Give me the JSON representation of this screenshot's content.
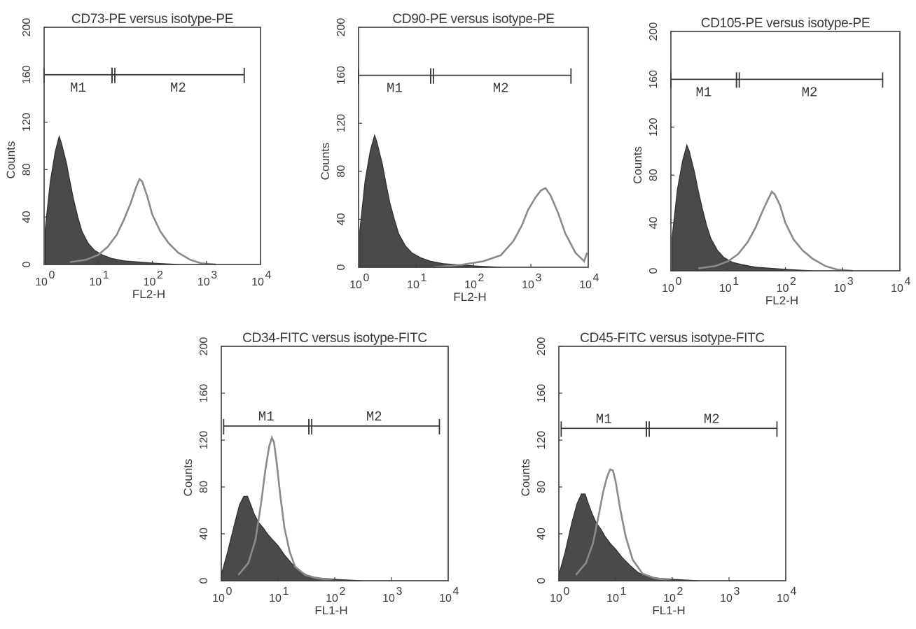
{
  "chart_data": [
    {
      "type": "area",
      "title": "CD73-PE versus isotype-PE",
      "xlabel": "FL2-H",
      "ylabel": "Counts",
      "xscale": "log",
      "xlim": [
        1,
        10000
      ],
      "ylim": [
        0,
        200
      ],
      "x_ticks": [
        "10",
        "10",
        "10",
        "10",
        "10"
      ],
      "x_tick_exponents": [
        "0",
        "1",
        "2",
        "3",
        "4"
      ],
      "y_ticks": [
        "0",
        "40",
        "80",
        "120",
        "160",
        "200"
      ],
      "grid": false,
      "gates": [
        {
          "label": "M1",
          "start": 1,
          "end": 18,
          "level": 160
        },
        {
          "label": "M2",
          "start": 18,
          "end": 5000,
          "level": 160
        }
      ],
      "series": [
        {
          "style": "filled",
          "color": "#4a4a4a",
          "x": [
            1.05,
            1.3,
            1.6,
            1.9,
            2.1,
            2.3,
            2.6,
            3.0,
            3.5,
            4.2,
            5.0,
            6.5,
            8.5,
            12,
            18,
            30,
            60,
            120,
            300
          ],
          "y": [
            30,
            70,
            95,
            108,
            102,
            95,
            85,
            70,
            55,
            40,
            28,
            18,
            12,
            8,
            5,
            3,
            2,
            1,
            0
          ]
        },
        {
          "style": "outline",
          "color": "#8a8a8a",
          "x": [
            3,
            6,
            10,
            15,
            22,
            30,
            40,
            50,
            58,
            65,
            80,
            100,
            140,
            200,
            300,
            500,
            800,
            1500
          ],
          "y": [
            2,
            4,
            8,
            15,
            25,
            38,
            52,
            65,
            72,
            70,
            58,
            42,
            28,
            18,
            10,
            4,
            1,
            0
          ]
        }
      ]
    },
    {
      "type": "area",
      "title": "CD90-PE versus isotype-PE",
      "xlabel": "FL2-H",
      "ylabel": "Counts",
      "xscale": "log",
      "xlim": [
        1,
        10000
      ],
      "ylim": [
        0,
        200
      ],
      "x_ticks": [
        "10",
        "10",
        "10",
        "10",
        "10"
      ],
      "x_tick_exponents": [
        "0",
        "1",
        "2",
        "3",
        "4"
      ],
      "y_ticks": [
        "0",
        "40",
        "80",
        "120",
        "160",
        "200"
      ],
      "grid": false,
      "gates": [
        {
          "label": "M1",
          "start": 1,
          "end": 18,
          "level": 160
        },
        {
          "label": "M2",
          "start": 18,
          "end": 5000,
          "level": 160
        }
      ],
      "series": [
        {
          "style": "filled",
          "color": "#4a4a4a",
          "x": [
            1.05,
            1.3,
            1.6,
            1.9,
            2.1,
            2.3,
            2.6,
            3.0,
            3.5,
            4.2,
            5.0,
            6.5,
            8.5,
            12,
            18,
            30,
            60,
            120,
            300
          ],
          "y": [
            30,
            72,
            97,
            110,
            104,
            96,
            86,
            70,
            54,
            40,
            28,
            18,
            12,
            8,
            5,
            3,
            2,
            1,
            0
          ]
        },
        {
          "style": "outline",
          "color": "#8a8a8a",
          "x": [
            20,
            60,
            150,
            300,
            500,
            700,
            900,
            1200,
            1500,
            1800,
            2200,
            3000,
            4000,
            6000,
            8500,
            9500
          ],
          "y": [
            0,
            2,
            5,
            10,
            22,
            35,
            48,
            58,
            64,
            66,
            60,
            45,
            28,
            12,
            5,
            12
          ]
        }
      ]
    },
    {
      "type": "area",
      "title": "CD105-PE versus isotype-PE",
      "xlabel": "FL2-H",
      "ylabel": "Counts",
      "xscale": "log",
      "xlim": [
        1,
        10000
      ],
      "ylim": [
        0,
        200
      ],
      "x_ticks": [
        "10",
        "10",
        "10",
        "10",
        "10"
      ],
      "x_tick_exponents": [
        "0",
        "1",
        "2",
        "3",
        "4"
      ],
      "y_ticks": [
        "0",
        "40",
        "80",
        "120",
        "160",
        "200"
      ],
      "grid": false,
      "gates": [
        {
          "label": "M1",
          "start": 1,
          "end": 14,
          "level": 160
        },
        {
          "label": "M2",
          "start": 14,
          "end": 5000,
          "level": 160
        }
      ],
      "series": [
        {
          "style": "filled",
          "color": "#4a4a4a",
          "x": [
            1.05,
            1.3,
            1.6,
            1.9,
            2.1,
            2.3,
            2.6,
            3.0,
            3.5,
            4.2,
            5.0,
            6.5,
            8.5,
            12,
            18,
            30,
            60,
            120,
            300
          ],
          "y": [
            28,
            68,
            92,
            105,
            100,
            92,
            82,
            67,
            53,
            38,
            27,
            17,
            11,
            7,
            5,
            3,
            2,
            1,
            0
          ]
        },
        {
          "style": "outline",
          "color": "#8a8a8a",
          "x": [
            3,
            6,
            10,
            15,
            22,
            30,
            40,
            50,
            58,
            65,
            80,
            100,
            140,
            200,
            300,
            500,
            800,
            1500
          ],
          "y": [
            2,
            4,
            8,
            14,
            24,
            36,
            50,
            60,
            66,
            64,
            55,
            40,
            26,
            17,
            10,
            4,
            1,
            0
          ]
        }
      ]
    },
    {
      "type": "area",
      "title": "CD34-FITC versus isotype-FITC",
      "xlabel": "FL1-H",
      "ylabel": "Counts",
      "xscale": "log",
      "xlim": [
        1,
        10000
      ],
      "ylim": [
        0,
        200
      ],
      "x_ticks": [
        "10",
        "10",
        "10",
        "10",
        "10"
      ],
      "x_tick_exponents": [
        "0",
        "1",
        "2",
        "3",
        "4"
      ],
      "y_ticks": [
        "0",
        "40",
        "80",
        "120",
        "160",
        "200"
      ],
      "grid": false,
      "gates": [
        {
          "label": "M1",
          "start": 1.1,
          "end": 35,
          "level": 132
        },
        {
          "label": "M2",
          "start": 35,
          "end": 7000,
          "level": 132
        }
      ],
      "series": [
        {
          "style": "filled",
          "color": "#4a4a4a",
          "x": [
            1.0,
            1.3,
            1.7,
            2.1,
            2.5,
            2.9,
            3.3,
            3.8,
            4.5,
            5.5,
            6.5,
            8,
            10,
            13,
            18,
            25,
            35,
            60,
            120,
            300
          ],
          "y": [
            5,
            25,
            48,
            65,
            72,
            72,
            65,
            57,
            50,
            45,
            40,
            35,
            30,
            22,
            14,
            8,
            4,
            2,
            1,
            0
          ]
        },
        {
          "style": "outline",
          "color": "#8a8a8a",
          "x": [
            2,
            3,
            4,
            5,
            6,
            7,
            7.8,
            8.5,
            9.5,
            11,
            13,
            16,
            20,
            30,
            50,
            100
          ],
          "y": [
            5,
            15,
            35,
            65,
            95,
            115,
            122,
            118,
            100,
            72,
            45,
            25,
            12,
            5,
            2,
            0
          ]
        }
      ]
    },
    {
      "type": "area",
      "title": "CD45-FITC versus isotype-FITC",
      "xlabel": "FL1-H",
      "ylabel": "Counts",
      "xscale": "log",
      "xlim": [
        1,
        10000
      ],
      "ylim": [
        0,
        200
      ],
      "x_ticks": [
        "10",
        "10",
        "10",
        "10",
        "10"
      ],
      "x_tick_exponents": [
        "0",
        "1",
        "2",
        "3",
        "4"
      ],
      "y_ticks": [
        "0",
        "40",
        "80",
        "120",
        "160",
        "200"
      ],
      "grid": false,
      "gates": [
        {
          "label": "M1",
          "start": 1.1,
          "end": 35,
          "level": 130
        },
        {
          "label": "M2",
          "start": 35,
          "end": 7000,
          "level": 130
        }
      ],
      "series": [
        {
          "style": "filled",
          "color": "#4a4a4a",
          "x": [
            1.0,
            1.3,
            1.7,
            2.1,
            2.5,
            2.9,
            3.3,
            3.8,
            4.5,
            5.5,
            6.5,
            8,
            10,
            13,
            18,
            25,
            35,
            60,
            120,
            300
          ],
          "y": [
            5,
            25,
            50,
            66,
            74,
            74,
            66,
            58,
            50,
            44,
            38,
            32,
            27,
            20,
            13,
            7,
            4,
            2,
            1,
            0
          ]
        },
        {
          "style": "outline",
          "color": "#8a8a8a",
          "x": [
            2,
            3,
            4,
            5,
            6,
            7,
            8,
            9,
            10,
            12,
            15,
            20,
            30,
            50,
            100
          ],
          "y": [
            5,
            15,
            32,
            55,
            75,
            88,
            95,
            94,
            85,
            62,
            38,
            18,
            6,
            2,
            0
          ]
        }
      ]
    }
  ]
}
